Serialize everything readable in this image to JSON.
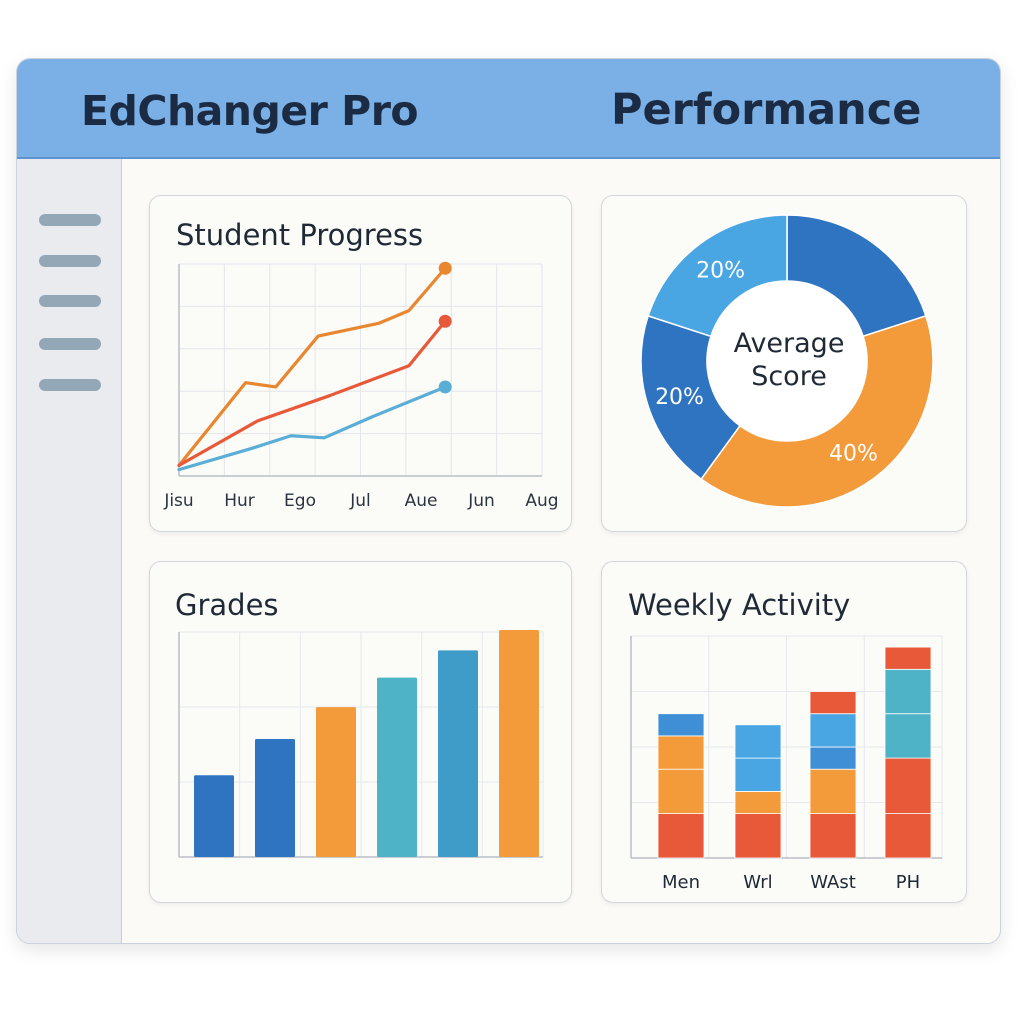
{
  "header": {
    "app_title": "EdChanger Pro",
    "page_title": "Performance"
  },
  "sidebar": {
    "items": [
      {
        "icon": "menu-line-icon"
      },
      {
        "icon": "menu-line-icon"
      },
      {
        "icon": "menu-line-icon"
      },
      {
        "icon": "menu-line-icon"
      },
      {
        "icon": "menu-line-icon"
      }
    ]
  },
  "colors": {
    "header": "#7ab0e6",
    "blue_dark": "#2f74c0",
    "blue_mid": "#3f8fd6",
    "blue_light": "#4aa6e3",
    "teal": "#4fb3c8",
    "orange": "#f39a3a",
    "orange_dark": "#e27a2a",
    "red": "#e8593a"
  },
  "chart_data": [
    {
      "type": "line",
      "title": "Student Progress",
      "categories": [
        "Jisu",
        "Hur",
        "Ego",
        "Jul",
        "Aue",
        "Jun",
        "Aug"
      ],
      "ylim": [
        0,
        100
      ],
      "grid": true,
      "series": [
        {
          "color": "#e8872f",
          "values": [
            [
              0,
              5
            ],
            [
              1.1,
              44
            ],
            [
              1.6,
              42
            ],
            [
              2.3,
              66
            ],
            [
              3.3,
              72
            ],
            [
              3.8,
              78
            ],
            [
              4.4,
              98
            ]
          ]
        },
        {
          "color": "#e8593a",
          "values": [
            [
              0,
              5
            ],
            [
              1.3,
              26
            ],
            [
              2.5,
              38
            ],
            [
              3.8,
              52
            ],
            [
              4.4,
              73
            ]
          ]
        },
        {
          "color": "#5aaed6",
          "values": [
            [
              0,
              3
            ],
            [
              1.2,
              13
            ],
            [
              1.85,
              19
            ],
            [
              2.4,
              18
            ],
            [
              3.2,
              28
            ],
            [
              4.4,
              42
            ]
          ]
        }
      ]
    },
    {
      "type": "pie",
      "title": "Average Score",
      "donut": true,
      "slices": [
        {
          "value": 20,
          "label": "",
          "color": "#2f74c0"
        },
        {
          "value": 40,
          "label": "40%",
          "color": "#f39a3a"
        },
        {
          "value": 20,
          "label": "20%",
          "color": "#2f74c0"
        },
        {
          "value": 20,
          "label": "20%",
          "color": "#4aa6e3"
        }
      ]
    },
    {
      "type": "bar",
      "title": "Grades",
      "categories": [
        "",
        "",
        "",
        "",
        "",
        ""
      ],
      "values": [
        36,
        52,
        66,
        79,
        91,
        100
      ],
      "colors": [
        "#2f74c0",
        "#2f74c0",
        "#f39a3a",
        "#4fb3c8",
        "#3f9bc8",
        "#f39a3a"
      ],
      "ylim": [
        0,
        100
      ],
      "grid": true
    },
    {
      "type": "bar",
      "stacked": true,
      "title": "Weekly Activity",
      "categories": [
        "Men",
        "Wrl",
        "WAst",
        "PH"
      ],
      "series": [
        {
          "values": [
            4,
            4,
            4,
            4
          ]
        },
        {
          "values": [
            4,
            2,
            4,
            5
          ]
        },
        {
          "values": [
            3,
            3,
            2,
            4
          ]
        },
        {
          "values": [
            2,
            3,
            3,
            4
          ]
        },
        {
          "values": [
            0,
            0,
            2,
            2
          ]
        }
      ],
      "segment_colors": [
        [
          "#e8593a",
          "#f39a3a",
          "#f39a3a",
          "#3f8fd6",
          null
        ],
        [
          "#e8593a",
          "#f39a3a",
          "#4aa6e3",
          "#4aa6e3",
          null
        ],
        [
          "#e8593a",
          "#f39a3a",
          "#3f8fd6",
          "#4aa6e3",
          "#e8593a"
        ],
        [
          "#e8593a",
          "#e8593a",
          "#4fb3c8",
          "#4fb3c8",
          "#e8593a"
        ]
      ],
      "ylim": [
        0,
        20
      ],
      "grid": true
    }
  ]
}
